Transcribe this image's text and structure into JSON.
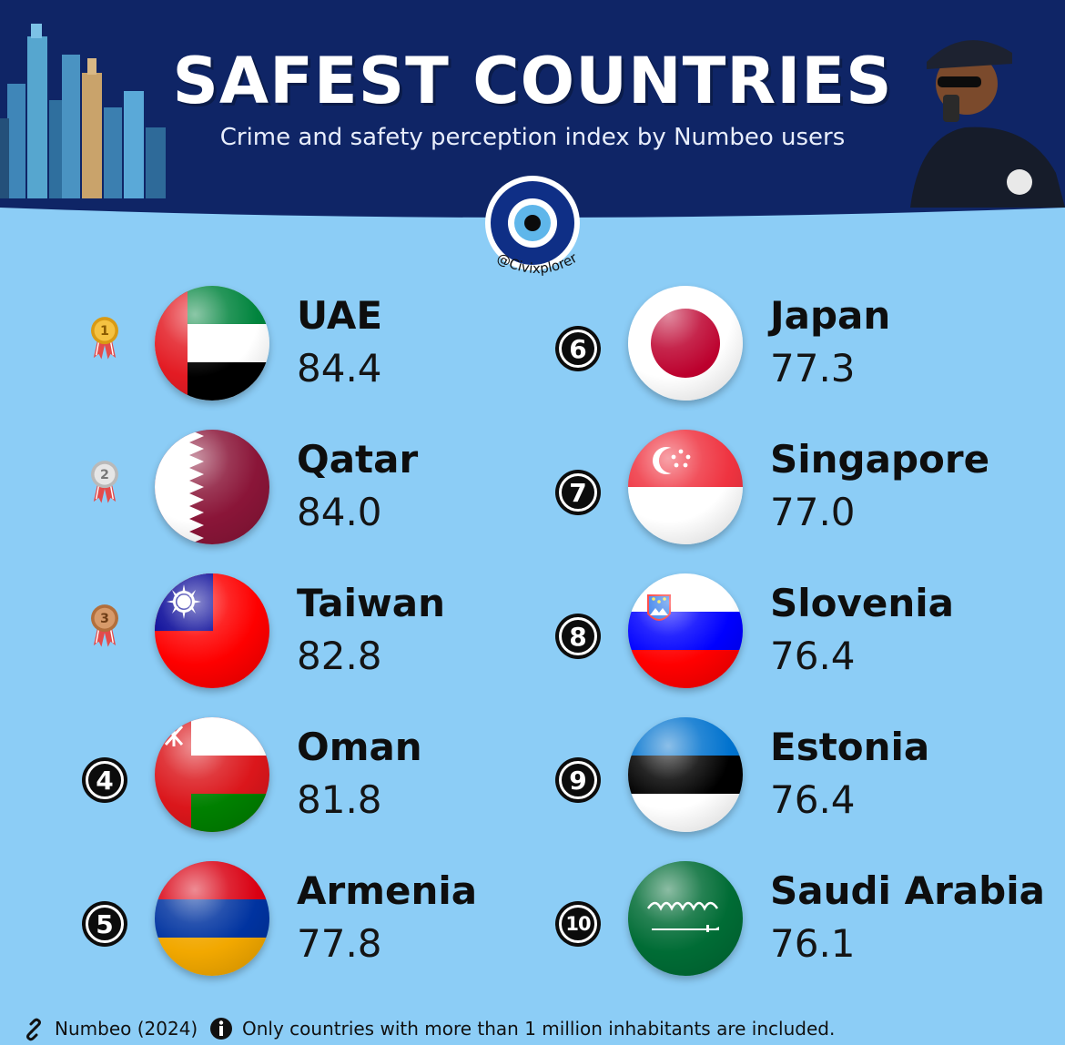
{
  "header": {
    "title": "SAFEST COUNTRIES",
    "subtitle": "Crime and safety perception index by Numbeo users",
    "handle": "@Civixplorer",
    "background_color": "#0f2566",
    "body_color": "#8ccdf6"
  },
  "chart_data": {
    "type": "table",
    "columns": [
      "rank",
      "country",
      "score"
    ],
    "rows": [
      {
        "rank": "1",
        "country": "UAE",
        "score": "84.4",
        "badge": "gold-medal-icon"
      },
      {
        "rank": "2",
        "country": "Qatar",
        "score": "84.0",
        "badge": "silver-medal-icon"
      },
      {
        "rank": "3",
        "country": "Taiwan",
        "score": "82.8",
        "badge": "bronze-medal-icon"
      },
      {
        "rank": "4",
        "country": "Oman",
        "score": "81.8",
        "badge": "number-badge"
      },
      {
        "rank": "5",
        "country": "Armenia",
        "score": "77.8",
        "badge": "number-badge"
      },
      {
        "rank": "6",
        "country": "Japan",
        "score": "77.3",
        "badge": "number-badge"
      },
      {
        "rank": "7",
        "country": "Singapore",
        "score": "77.0",
        "badge": "number-badge"
      },
      {
        "rank": "8",
        "country": "Slovenia",
        "score": "76.4",
        "badge": "number-badge"
      },
      {
        "rank": "9",
        "country": "Estonia",
        "score": "76.4",
        "badge": "number-badge"
      },
      {
        "rank": "10",
        "country": "Saudi Arabia",
        "score": "76.1",
        "badge": "number-badge"
      }
    ]
  },
  "footer": {
    "source": "Numbeo (2024)",
    "note": "Only countries with more than 1 million inhabitants are included."
  }
}
